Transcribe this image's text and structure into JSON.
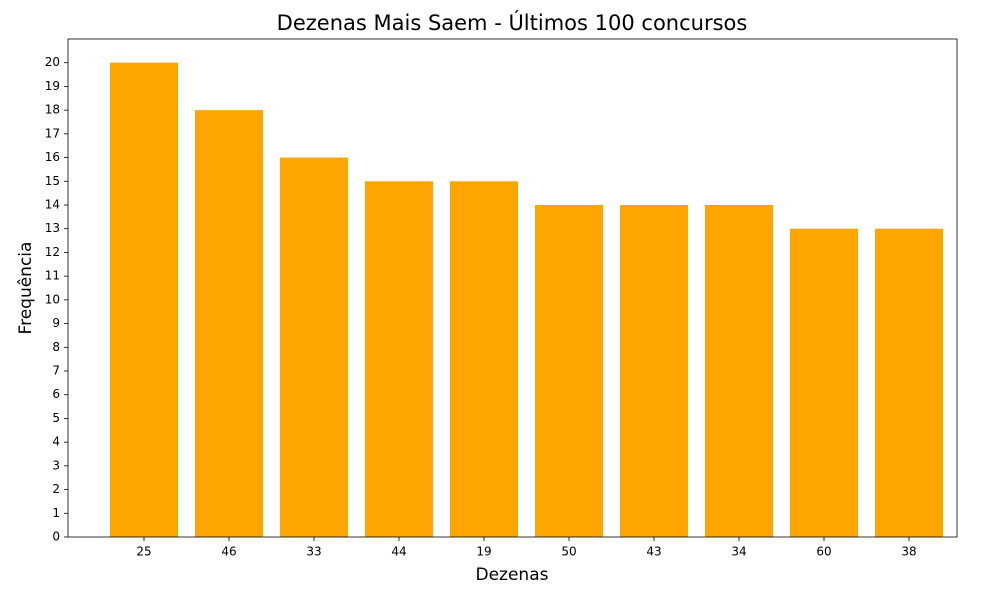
{
  "chart_data": {
    "type": "bar",
    "title": "Dezenas Mais Saem - Últimos 100 concursos",
    "x_label": "Dezenas",
    "y_label": "Frequência",
    "categories": [
      "25",
      "46",
      "33",
      "44",
      "19",
      "50",
      "43",
      "34",
      "60",
      "38"
    ],
    "values": [
      20,
      18,
      16,
      15,
      15,
      14,
      14,
      14,
      13,
      13
    ],
    "color": "#ffa500",
    "ylim": [
      0,
      21
    ],
    "yticks": [
      0,
      1,
      2,
      3,
      4,
      5,
      6,
      7,
      8,
      9,
      10,
      11,
      12,
      13,
      14,
      15,
      16,
      17,
      18,
      19,
      20
    ],
    "grid": false
  }
}
